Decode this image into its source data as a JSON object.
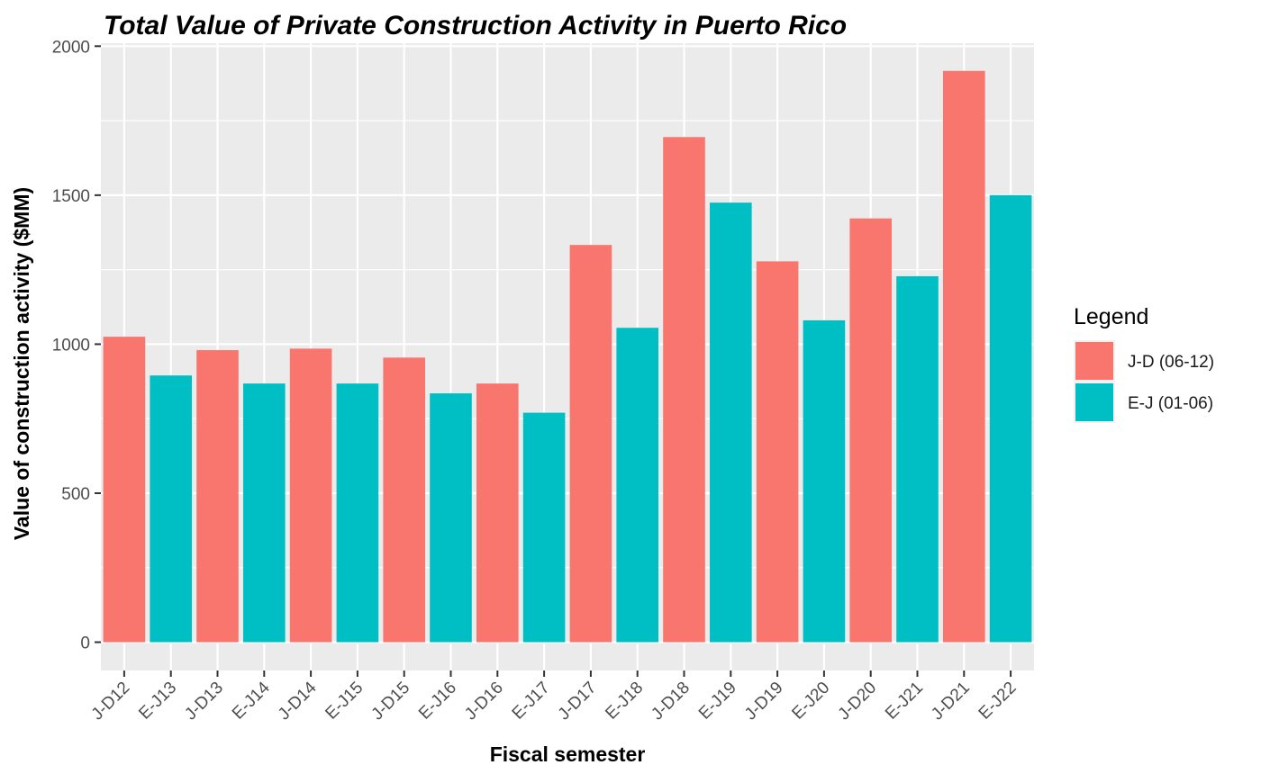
{
  "chart_data": {
    "type": "bar",
    "title": "Total Value of Private Construction Activity in Puerto Rico",
    "xlabel": "Fiscal semester",
    "ylabel": "Value of construction activity ($MM)",
    "ylim": [
      -95,
      2010
    ],
    "y_ticks": [
      0,
      500,
      1000,
      1500,
      2000
    ],
    "grid": true,
    "legend": {
      "title": "Legend",
      "placement": "right",
      "entries": [
        {
          "key": "J-D",
          "label": "J-D (06-12)",
          "color": "#F8766D"
        },
        {
          "key": "E-J",
          "label": "E-J (01-06)",
          "color": "#00BFC4"
        }
      ]
    },
    "colors": {
      "J-D": "#F8766D",
      "E-J": "#00BFC4",
      "panel": "#EBEBEB",
      "grid": "#FFFFFF"
    },
    "categories": [
      "J-D12",
      "E-J13",
      "J-D13",
      "E-J14",
      "J-D14",
      "E-J15",
      "J-D15",
      "E-J16",
      "J-D16",
      "E-J17",
      "J-D17",
      "E-J18",
      "J-D18",
      "E-J19",
      "J-D19",
      "E-J20",
      "J-D20",
      "E-J21",
      "J-D21",
      "E-J22"
    ],
    "groups": [
      "J-D",
      "E-J",
      "J-D",
      "E-J",
      "J-D",
      "E-J",
      "J-D",
      "E-J",
      "J-D",
      "E-J",
      "J-D",
      "E-J",
      "J-D",
      "E-J",
      "J-D",
      "E-J",
      "J-D",
      "E-J",
      "J-D",
      "E-J"
    ],
    "values": [
      1025,
      895,
      980,
      868,
      985,
      868,
      955,
      835,
      868,
      770,
      1333,
      1055,
      1695,
      1475,
      1278,
      1080,
      1422,
      1228,
      1917,
      1500
    ]
  }
}
